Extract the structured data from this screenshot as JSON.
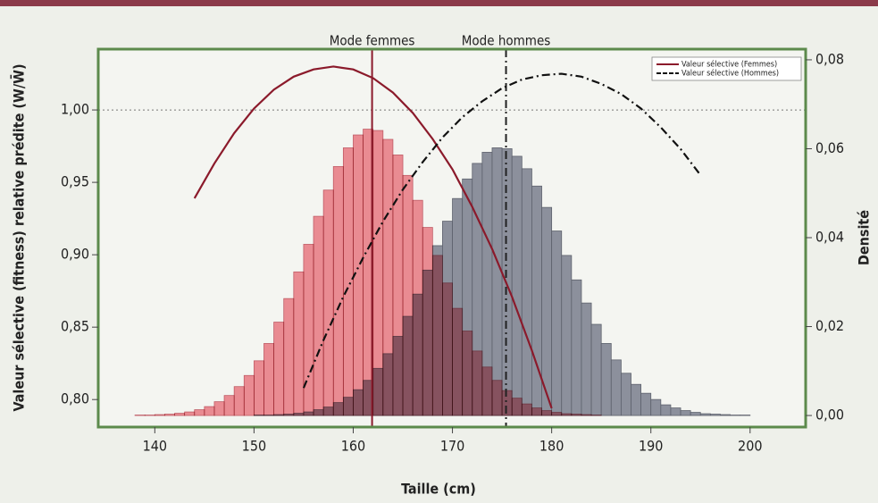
{
  "chart_data": {
    "type": "histogram",
    "xlabel": "Taille (cm)",
    "ylabel": "Valeur sélective (fitness) relative prédite (W/W̄)",
    "y2label": "Densité",
    "xlim": [
      134.3,
      205.6
    ],
    "ylim": [
      0.781,
      1.042
    ],
    "y2lim": [
      -0.0026,
      0.0824
    ],
    "xticks": [
      140,
      150,
      160,
      170,
      180,
      190,
      200
    ],
    "yticks": [
      {
        "value": 0.8,
        "label": "0,80"
      },
      {
        "value": 0.85,
        "label": "0,85"
      },
      {
        "value": 0.9,
        "label": "0,90"
      },
      {
        "value": 0.95,
        "label": "0,95"
      },
      {
        "value": 1.0,
        "label": "1,00"
      }
    ],
    "y2ticks": [
      {
        "value": 0,
        "label": "0,00"
      },
      {
        "value": 0.02,
        "label": "0,02"
      },
      {
        "value": 0.04,
        "label": "0,04"
      },
      {
        "value": 0.06,
        "label": "0,06"
      },
      {
        "value": 0.08,
        "label": "0,08"
      }
    ],
    "hline": 1.0,
    "bins": [
      138,
      139,
      140,
      141,
      142,
      143,
      144,
      145,
      146,
      147,
      148,
      149,
      150,
      151,
      152,
      153,
      154,
      155,
      156,
      157,
      158,
      159,
      160,
      161,
      162,
      163,
      164,
      165,
      166,
      167,
      168,
      169,
      170,
      171,
      172,
      173,
      174,
      175,
      176,
      177,
      178,
      179,
      180,
      181,
      182,
      183,
      184,
      185,
      186,
      187,
      188,
      189,
      190,
      191,
      192,
      193,
      194,
      195,
      196,
      197,
      198,
      199,
      200,
      201,
      202
    ],
    "histograms": [
      {
        "axis": "y2",
        "color": "#8c909c",
        "values": [
          0,
          0,
          0,
          0,
          0,
          0,
          0,
          0,
          0,
          0,
          0,
          0,
          0.0001,
          0.0001,
          0.0002,
          0.0003,
          0.0005,
          0.0008,
          0.0013,
          0.0019,
          0.0029,
          0.0041,
          0.0058,
          0.0079,
          0.0106,
          0.0139,
          0.0178,
          0.0223,
          0.0273,
          0.0327,
          0.0382,
          0.0437,
          0.0488,
          0.0532,
          0.0567,
          0.0592,
          0.0602,
          0.06,
          0.0583,
          0.0555,
          0.0516,
          0.0468,
          0.0415,
          0.036,
          0.0305,
          0.0253,
          0.0205,
          0.0162,
          0.0125,
          0.0095,
          0.007,
          0.005,
          0.0036,
          0.0024,
          0.0017,
          0.0011,
          0.0007,
          0.0004,
          0.0003,
          0.0002,
          0.0001,
          0.0001,
          0,
          0,
          0
        ]
      },
      {
        "axis": "y2",
        "color": "#f4919b",
        "values": [
          0.0001,
          0.0001,
          0.0002,
          0.0003,
          0.0005,
          0.0008,
          0.0013,
          0.002,
          0.0031,
          0.0045,
          0.0065,
          0.009,
          0.0123,
          0.0162,
          0.021,
          0.0263,
          0.0323,
          0.0385,
          0.0448,
          0.0507,
          0.056,
          0.0602,
          0.0631,
          0.0644,
          0.0641,
          0.0621,
          0.0586,
          0.054,
          0.0484,
          0.0423,
          0.036,
          0.0298,
          0.0241,
          0.019,
          0.0145,
          0.0109,
          0.0079,
          0.0056,
          0.0039,
          0.0026,
          0.0017,
          0.0011,
          0.0007,
          0.0004,
          0.0003,
          0.0002,
          0.0001,
          0,
          0,
          0,
          0,
          0,
          0,
          0,
          0,
          0,
          0,
          0,
          0,
          0,
          0,
          0,
          0,
          0,
          0
        ]
      }
    ],
    "series": [
      {
        "name": "Valeur sélective (Femmes)",
        "color": "#8b1a2b",
        "style": "solid",
        "x": [
          144,
          146,
          148,
          150,
          152,
          154,
          156,
          158,
          160,
          162,
          164,
          166,
          168,
          170,
          172,
          174,
          176,
          178,
          180
        ],
        "values": [
          0.939,
          0.963,
          0.984,
          1.001,
          1.014,
          1.023,
          1.028,
          1.03,
          1.028,
          1.022,
          1.012,
          0.998,
          0.98,
          0.959,
          0.933,
          0.904,
          0.871,
          0.834,
          0.794
        ]
      },
      {
        "name": "Valeur sélective (Hommes)",
        "color": "#111111",
        "style": "dashdot",
        "x": [
          155,
          157,
          159,
          161,
          163,
          165,
          167,
          169,
          171,
          173,
          175,
          177,
          179,
          181,
          183,
          185,
          187,
          189,
          191,
          193,
          195
        ],
        "values": [
          0.808,
          0.841,
          0.871,
          0.898,
          0.923,
          0.945,
          0.964,
          0.981,
          0.995,
          1.006,
          1.015,
          1.021,
          1.024,
          1.025,
          1.023,
          1.018,
          1.011,
          1.001,
          0.988,
          0.973,
          0.955
        ]
      }
    ],
    "vlines": [
      {
        "label": "Mode femmes",
        "x": 161.9,
        "color": "#8b1a2b",
        "style": "solid"
      },
      {
        "label": "Mode hommes",
        "x": 175.4,
        "color": "#222222",
        "style": "dashdot"
      }
    ]
  }
}
